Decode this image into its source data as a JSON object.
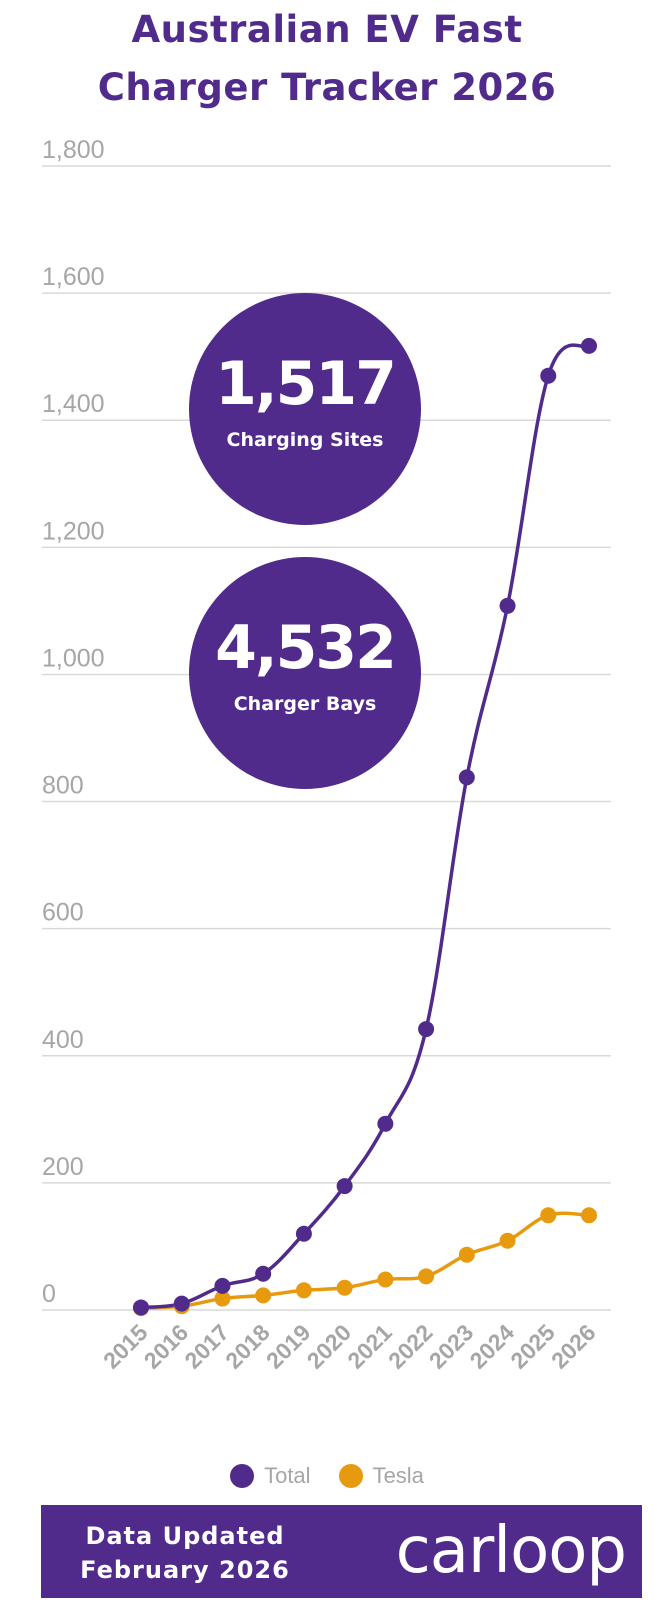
{
  "title_line1": "Australian EV Fast",
  "title_line2": "Charger Tracker 2026",
  "kpis": [
    {
      "value": "1,517",
      "label": "Charging Sites"
    },
    {
      "value": "4,532",
      "label": "Charger Bays"
    }
  ],
  "legend": [
    {
      "name": "Total",
      "color": "#512b8b"
    },
    {
      "name": "Tesla",
      "color": "#e89a0f"
    }
  ],
  "footer": {
    "updated_line1": "Data Updated",
    "updated_line2": "February 2026",
    "logo": "carloop"
  },
  "colors": {
    "accent": "#512b8b",
    "tesla": "#e89a0f",
    "grid": "#d9d9d9",
    "axis_text": "#a6a6a6"
  },
  "chart_data": {
    "type": "line",
    "title": "Australian EV Fast Charger Tracker 2026",
    "categories": [
      "2015",
      "2016",
      "2017",
      "2018",
      "2019",
      "2020",
      "2021",
      "2022",
      "2023",
      "2024",
      "2025",
      "2026"
    ],
    "series": [
      {
        "name": "Total",
        "values": [
          4,
          10,
          38,
          57,
          120,
          195,
          293,
          442,
          838,
          1108,
          1470,
          1517
        ]
      },
      {
        "name": "Tesla",
        "values": [
          3,
          6,
          18,
          23,
          31,
          35,
          48,
          53,
          87,
          109,
          149,
          149
        ]
      }
    ],
    "y_ticks": [
      "0",
      "200",
      "400",
      "600",
      "800",
      "1,000",
      "1,200",
      "1,400",
      "1,600",
      "1,800"
    ],
    "ylim": [
      0,
      1800
    ],
    "grid": true,
    "legend_position": "bottom"
  }
}
